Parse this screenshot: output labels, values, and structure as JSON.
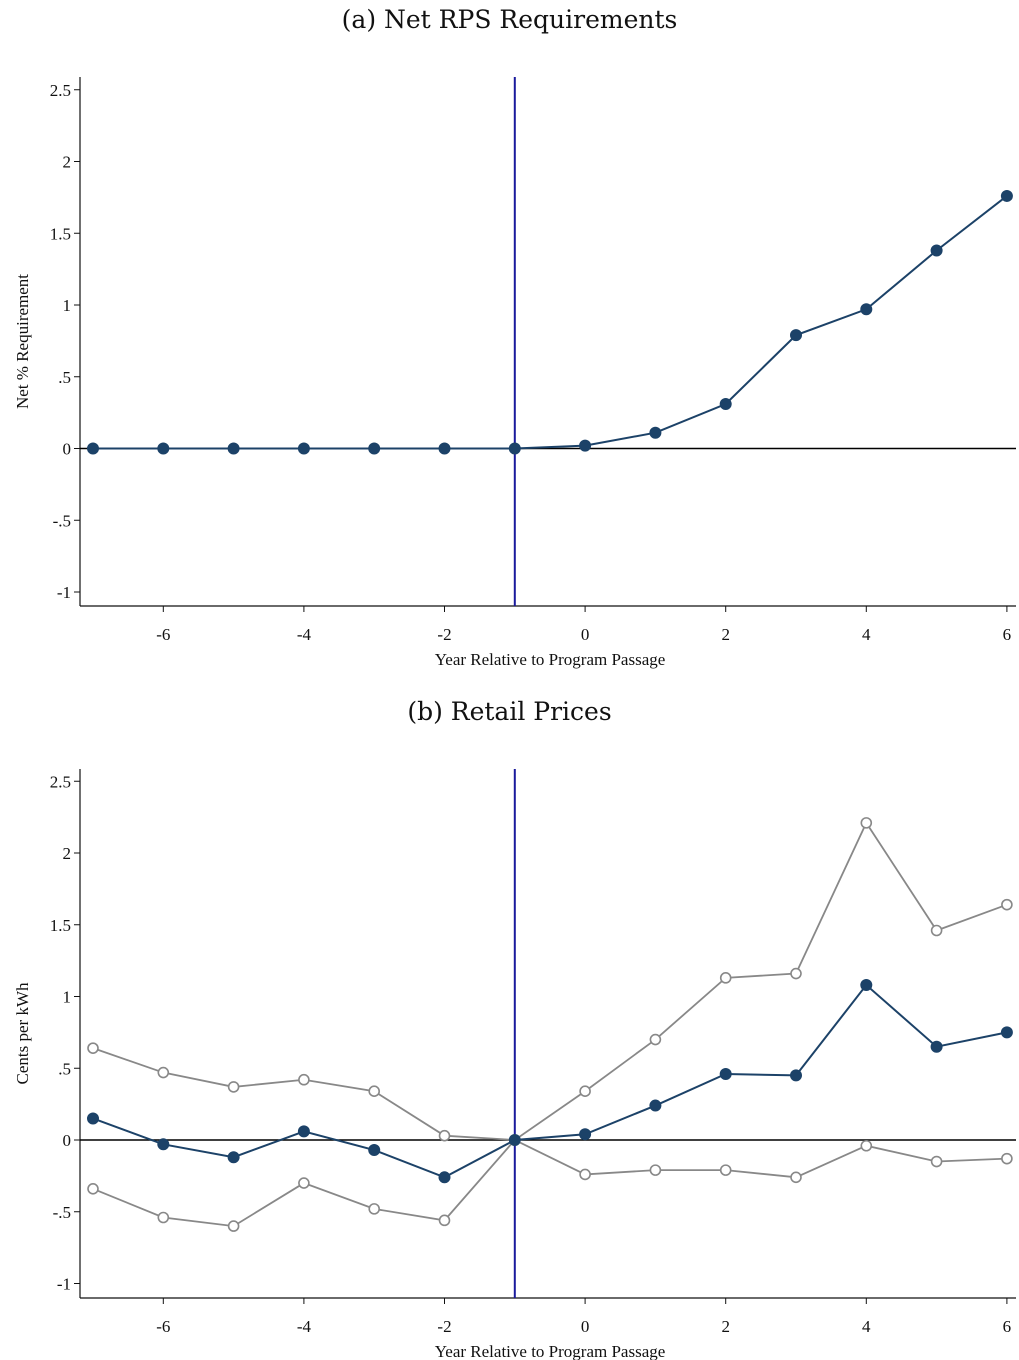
{
  "chart_data": [
    {
      "type": "line",
      "title": "(a) Net RPS Requirements",
      "xlabel": "Year Relative to Program Passage",
      "ylabel": "Net % Requirement",
      "xlim": [
        -7,
        6
      ],
      "ylim": [
        -1,
        2.5
      ],
      "xticks": [
        -6,
        -4,
        -2,
        0,
        2,
        4,
        6
      ],
      "xtick_labels": [
        "-6",
        "-4",
        "-2",
        "0",
        "2",
        "4",
        "6"
      ],
      "yticks": [
        -1,
        -0.5,
        0,
        0.5,
        1,
        1.5,
        2,
        2.5
      ],
      "ytick_labels": [
        "-1",
        "-.5",
        "0",
        ".5",
        "1",
        "1.5",
        "2",
        "2.5"
      ],
      "vline": -1,
      "hline": 0,
      "colors": {
        "main": "#1c4268",
        "vline": "#1a1a9c",
        "ci": "#888888"
      },
      "x": [
        -7,
        -6,
        -5,
        -4,
        -3,
        -2,
        -1,
        0,
        1,
        2,
        3,
        4,
        5,
        6
      ],
      "series": [
        {
          "role": "estimate",
          "marker": "filled",
          "values": [
            0,
            0,
            0,
            0,
            0,
            0,
            0,
            0.02,
            0.11,
            0.31,
            0.79,
            0.97,
            1.38,
            1.76
          ]
        }
      ]
    },
    {
      "type": "line",
      "title": "(b) Retail Prices",
      "xlabel": "Year Relative to Program Passage",
      "ylabel": "Cents per kWh",
      "xlim": [
        -7,
        6
      ],
      "ylim": [
        -1,
        2.5
      ],
      "xticks": [
        -6,
        -4,
        -2,
        0,
        2,
        4,
        6
      ],
      "xtick_labels": [
        "-6",
        "-4",
        "-2",
        "0",
        "2",
        "4",
        "6"
      ],
      "yticks": [
        -1,
        -0.5,
        0,
        0.5,
        1,
        1.5,
        2,
        2.5
      ],
      "ytick_labels": [
        "-1",
        "-.5",
        "0",
        ".5",
        "1",
        "1.5",
        "2",
        "2.5"
      ],
      "vline": -1,
      "hline": 0,
      "colors": {
        "main": "#1c4268",
        "vline": "#1a1a9c",
        "ci": "#888888"
      },
      "x": [
        -7,
        -6,
        -5,
        -4,
        -3,
        -2,
        -1,
        0,
        1,
        2,
        3,
        4,
        5,
        6
      ],
      "series": [
        {
          "role": "upper",
          "marker": "hollow",
          "values": [
            0.64,
            0.47,
            0.37,
            0.42,
            0.34,
            0.03,
            0,
            0.34,
            0.7,
            1.13,
            1.16,
            2.21,
            1.46,
            1.64
          ]
        },
        {
          "role": "lower",
          "marker": "hollow",
          "values": [
            -0.34,
            -0.54,
            -0.6,
            -0.3,
            -0.48,
            -0.56,
            0,
            -0.24,
            -0.21,
            -0.21,
            -0.26,
            -0.04,
            -0.15,
            -0.13
          ]
        },
        {
          "role": "estimate",
          "marker": "filled",
          "values": [
            0.15,
            -0.03,
            -0.12,
            0.06,
            -0.07,
            -0.26,
            0,
            0.04,
            0.24,
            0.46,
            0.45,
            1.08,
            0.65,
            0.75
          ]
        }
      ]
    }
  ]
}
